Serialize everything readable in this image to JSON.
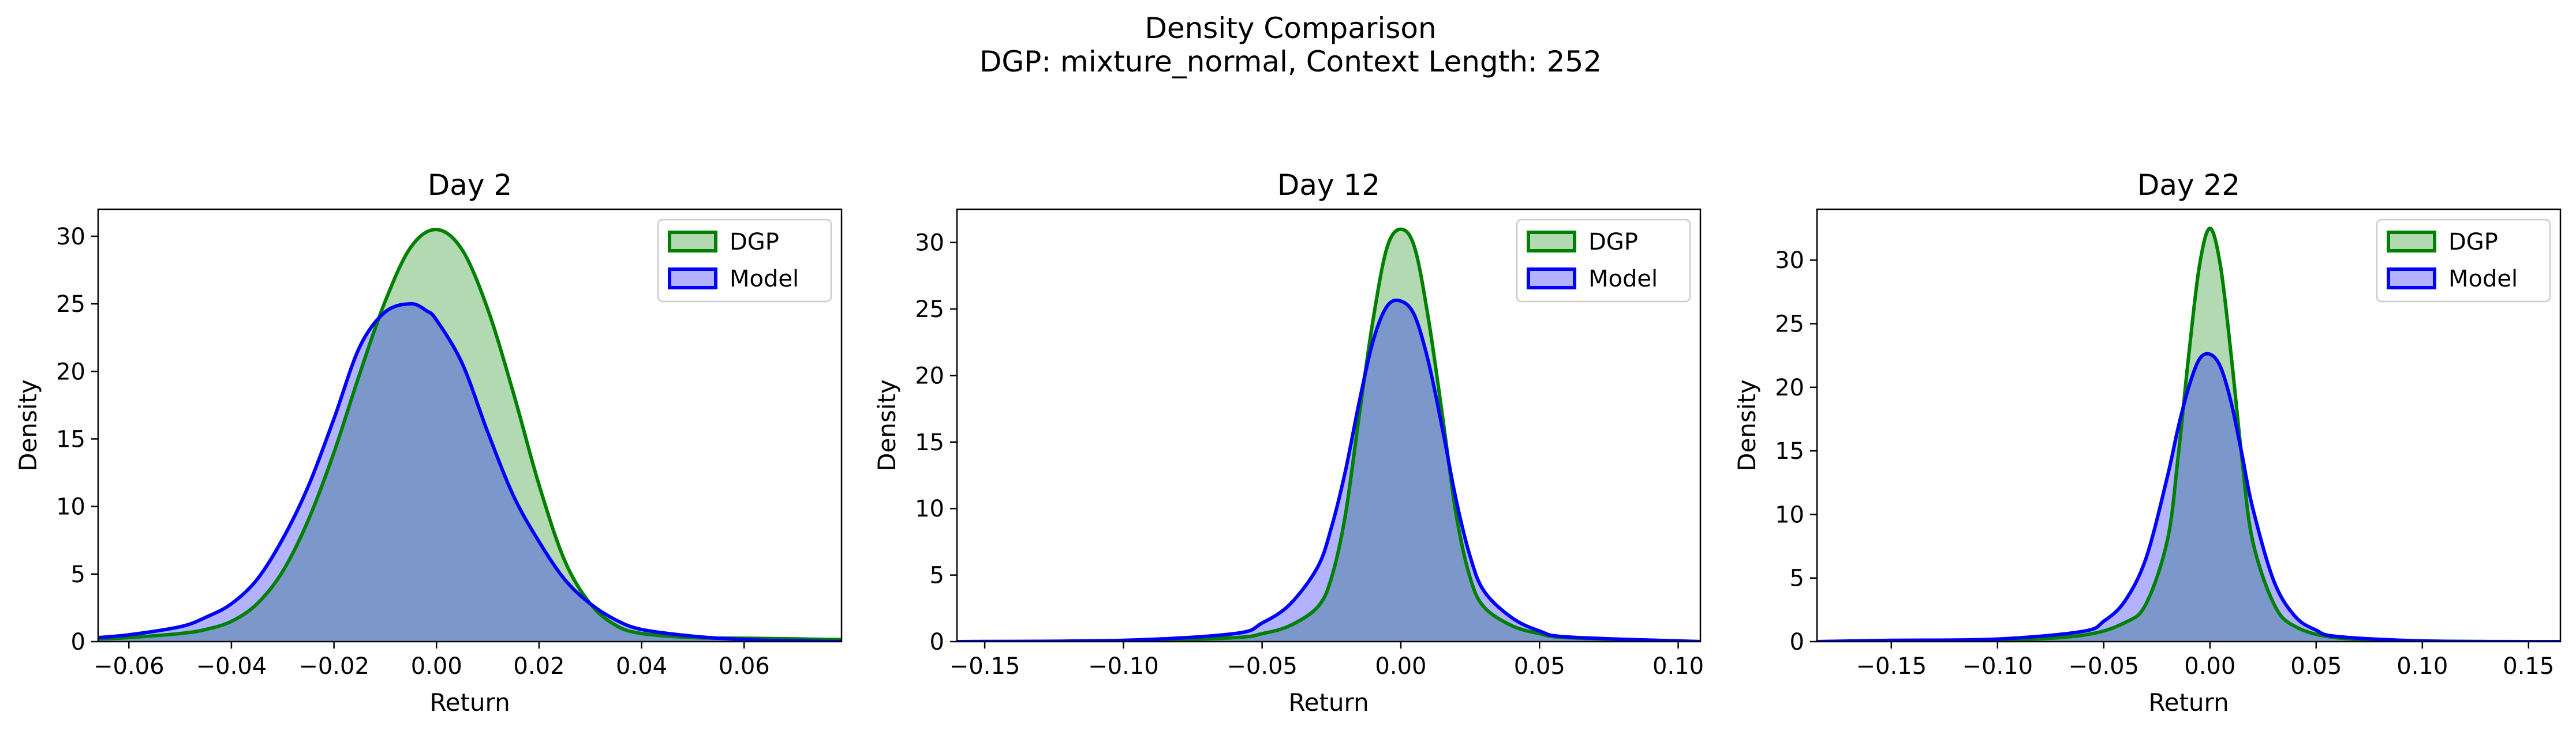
{
  "figure": {
    "title_line1": "Density Comparison",
    "title_line2": "DGP: mixture_normal, Context Length: 252"
  },
  "colors": {
    "dgp_line": "#008000",
    "dgp_fill": "#008000",
    "model_line": "#0000ff",
    "model_fill": "#0000ff"
  },
  "chart_data": [
    {
      "type": "area",
      "title": "Day 2",
      "xlabel": "Return",
      "ylabel": "Density",
      "xlim": [
        -0.066,
        0.079
      ],
      "ylim": [
        0,
        32
      ],
      "xticks": [
        -0.06,
        -0.04,
        -0.02,
        0.0,
        0.02,
        0.04,
        0.06
      ],
      "xtick_labels": [
        "−0.06",
        "−0.04",
        "−0.02",
        "0.00",
        "0.02",
        "0.04",
        "0.06"
      ],
      "yticks": [
        0,
        5,
        10,
        15,
        20,
        25,
        30
      ],
      "ytick_labels": [
        "0",
        "5",
        "10",
        "15",
        "20",
        "25",
        "30"
      ],
      "legend": "top-right",
      "series": [
        {
          "name": "DGP",
          "x": [
            -0.066,
            -0.06,
            -0.05,
            -0.045,
            -0.04,
            -0.035,
            -0.03,
            -0.025,
            -0.02,
            -0.015,
            -0.01,
            -0.005,
            0.0,
            0.005,
            0.01,
            0.015,
            0.02,
            0.025,
            0.03,
            0.035,
            0.04,
            0.05,
            0.06,
            0.07,
            0.079
          ],
          "y": [
            0.2,
            0.3,
            0.6,
            0.9,
            1.5,
            2.8,
            5.2,
            9.0,
            14.0,
            19.8,
            25.2,
            29.2,
            30.5,
            29.0,
            24.6,
            18.4,
            11.6,
            6.0,
            2.8,
            1.2,
            0.6,
            0.3,
            0.25,
            0.2,
            0.15
          ]
        },
        {
          "name": "Model",
          "x": [
            -0.066,
            -0.06,
            -0.05,
            -0.045,
            -0.04,
            -0.035,
            -0.03,
            -0.025,
            -0.02,
            -0.015,
            -0.01,
            -0.005,
            -0.002,
            0.0,
            0.005,
            0.01,
            0.015,
            0.02,
            0.025,
            0.03,
            0.035,
            0.04,
            0.05,
            0.06,
            0.07,
            0.079
          ],
          "y": [
            0.3,
            0.5,
            1.1,
            1.8,
            2.8,
            4.6,
            7.6,
            11.5,
            16.5,
            21.8,
            24.4,
            25.0,
            24.5,
            23.8,
            20.6,
            15.5,
            10.8,
            7.4,
            4.6,
            2.8,
            1.6,
            0.9,
            0.4,
            0.15,
            0.05,
            0.0
          ]
        }
      ]
    },
    {
      "type": "area",
      "title": "Day 12",
      "xlabel": "Return",
      "ylabel": "Density",
      "xlim": [
        -0.16,
        0.108
      ],
      "ylim": [
        0,
        32.5
      ],
      "xticks": [
        -0.15,
        -0.1,
        -0.05,
        0.0,
        0.05,
        0.1
      ],
      "xtick_labels": [
        "−0.15",
        "−0.10",
        "−0.05",
        "0.00",
        "0.05",
        "0.10"
      ],
      "yticks": [
        0,
        5,
        10,
        15,
        20,
        25,
        30
      ],
      "ytick_labels": [
        "0",
        "5",
        "10",
        "15",
        "20",
        "25",
        "30"
      ],
      "legend": "top-right",
      "series": [
        {
          "name": "DGP",
          "x": [
            -0.16,
            -0.1,
            -0.06,
            -0.05,
            -0.04,
            -0.03,
            -0.025,
            -0.02,
            -0.015,
            -0.01,
            -0.005,
            0.0,
            0.005,
            0.01,
            0.015,
            0.02,
            0.025,
            0.03,
            0.04,
            0.05,
            0.06,
            0.1,
            0.108
          ],
          "y": [
            0.0,
            0.05,
            0.3,
            0.6,
            1.2,
            2.6,
            4.8,
            9.5,
            17.0,
            24.2,
            29.6,
            31.0,
            29.6,
            24.2,
            17.0,
            9.5,
            4.8,
            2.6,
            1.2,
            0.6,
            0.3,
            0.05,
            0.0
          ]
        },
        {
          "name": "Model",
          "x": [
            -0.16,
            -0.1,
            -0.06,
            -0.05,
            -0.04,
            -0.03,
            -0.025,
            -0.02,
            -0.015,
            -0.01,
            -0.005,
            0.0,
            0.005,
            0.01,
            0.015,
            0.02,
            0.025,
            0.03,
            0.04,
            0.05,
            0.06,
            0.1,
            0.108
          ],
          "y": [
            0.0,
            0.1,
            0.6,
            1.4,
            2.8,
            5.6,
            8.6,
            12.8,
            18.0,
            22.6,
            25.2,
            25.6,
            24.5,
            21.0,
            16.0,
            10.6,
            6.4,
            3.8,
            1.8,
            0.8,
            0.35,
            0.05,
            0.0
          ]
        }
      ]
    },
    {
      "type": "area",
      "title": "Day 22",
      "xlabel": "Return",
      "ylabel": "Density",
      "xlim": [
        -0.185,
        0.165
      ],
      "ylim": [
        0,
        34
      ],
      "xticks": [
        -0.15,
        -0.1,
        -0.05,
        0.0,
        0.05,
        0.1,
        0.15
      ],
      "xtick_labels": [
        "−0.15",
        "−0.10",
        "−0.05",
        "0.00",
        "0.05",
        "0.10",
        "0.15"
      ],
      "yticks": [
        0,
        5,
        10,
        15,
        20,
        25,
        30
      ],
      "ytick_labels": [
        "0",
        "5",
        "10",
        "15",
        "20",
        "25",
        "30"
      ],
      "legend": "top-right",
      "series": [
        {
          "name": "DGP",
          "x": [
            -0.185,
            -0.15,
            -0.1,
            -0.06,
            -0.04,
            -0.03,
            -0.02,
            -0.015,
            -0.01,
            -0.005,
            0.0,
            0.005,
            0.01,
            0.015,
            0.02,
            0.03,
            0.04,
            0.06,
            0.1,
            0.15,
            0.165
          ],
          "y": [
            0.0,
            0.05,
            0.1,
            0.5,
            1.5,
            3.0,
            8.0,
            14.5,
            22.5,
            29.5,
            32.5,
            29.5,
            22.5,
            14.5,
            8.0,
            3.0,
            1.2,
            0.3,
            0.05,
            0.0,
            0.0
          ]
        },
        {
          "name": "Model",
          "x": [
            -0.185,
            -0.15,
            -0.1,
            -0.06,
            -0.05,
            -0.04,
            -0.03,
            -0.02,
            -0.015,
            -0.01,
            -0.005,
            0.0,
            0.005,
            0.01,
            0.015,
            0.02,
            0.03,
            0.04,
            0.05,
            0.06,
            0.1,
            0.15,
            0.165
          ],
          "y": [
            0.0,
            0.1,
            0.2,
            0.8,
            1.6,
            3.2,
            6.6,
            13.0,
            16.8,
            20.0,
            22.2,
            22.6,
            21.6,
            18.8,
            14.8,
            10.6,
            4.8,
            2.0,
            0.9,
            0.4,
            0.05,
            0.0,
            0.0
          ]
        }
      ]
    }
  ]
}
